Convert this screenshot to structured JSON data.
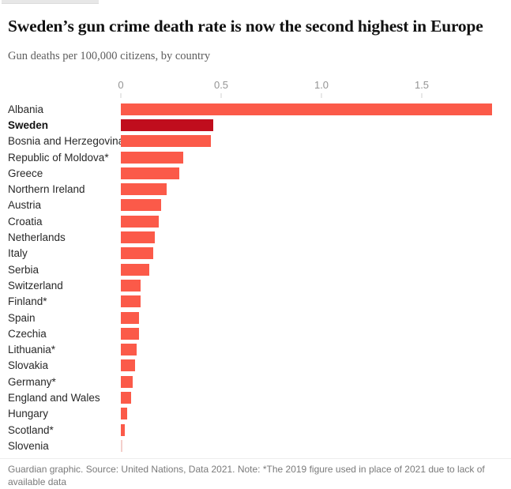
{
  "header": {
    "title": "Sweden’s gun crime death rate is now the second highest in Europe",
    "subtitle": "Gun deaths per 100,000 citizens, by country"
  },
  "chart_data": {
    "type": "bar",
    "orientation": "horizontal",
    "title": "Sweden’s gun crime death rate is now the second highest in Europe",
    "subtitle": "Gun deaths per 100,000 citizens, by country",
    "xlabel": "",
    "ylabel": "",
    "xlim": [
      0,
      1.95
    ],
    "x_ticks": [
      0,
      0.5,
      1.0,
      1.5
    ],
    "x_tick_labels": [
      "0",
      "0.5",
      "1.0",
      "1.5"
    ],
    "grid": false,
    "legend": null,
    "categories": [
      "Albania",
      "Sweden",
      "Bosnia and Herzegovina",
      "Republic of Moldova*",
      "Greece",
      "Northern Ireland",
      "Austria",
      "Croatia",
      "Netherlands",
      "Italy",
      "Serbia",
      "Switzerland",
      "Finland*",
      "Spain",
      "Czechia",
      "Lithuania*",
      "Slovakia",
      "Germany*",
      "England and Wales",
      "Hungary",
      "Scotland*",
      "Slovenia"
    ],
    "values": [
      1.85,
      0.46,
      0.45,
      0.31,
      0.29,
      0.23,
      0.2,
      0.19,
      0.17,
      0.16,
      0.14,
      0.1,
      0.1,
      0.09,
      0.09,
      0.08,
      0.07,
      0.06,
      0.05,
      0.03,
      0.02,
      0.0
    ],
    "highlight_category": "Sweden",
    "highlight_index": 1
  },
  "colors": {
    "bar": "#fb5a49",
    "highlight": "#c00d1d",
    "zero_bar": "#f4cfcb",
    "axis_label": "#949494",
    "tick": "#d2d2d2"
  },
  "footer": {
    "text": "Guardian graphic. Source: United Nations, Data 2021. Note: *The 2019 figure used in place of 2021 due to lack of available data"
  }
}
